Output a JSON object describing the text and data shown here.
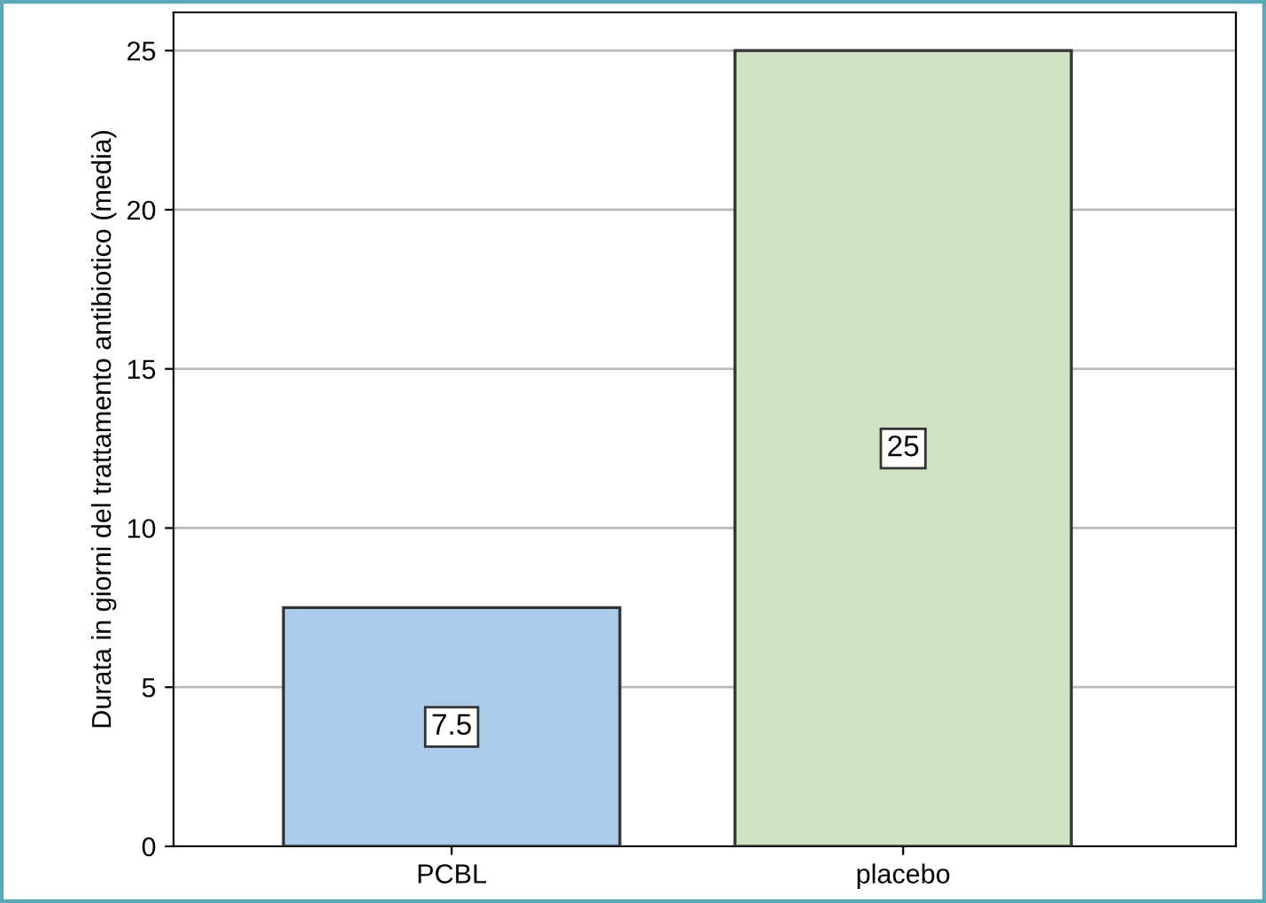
{
  "chart_data": {
    "type": "bar",
    "ylabel": "Durata in giorni del trattamento antibiotico (media)",
    "categories": [
      "PCBL",
      "placebo"
    ],
    "values": [
      7.5,
      25
    ],
    "colors": [
      "#abcbeb",
      "#cfe3c4"
    ],
    "ylim": [
      0,
      26.2
    ],
    "yticks": [
      0,
      5,
      10,
      15,
      20,
      25
    ],
    "grid": "y",
    "data_labels": true
  }
}
